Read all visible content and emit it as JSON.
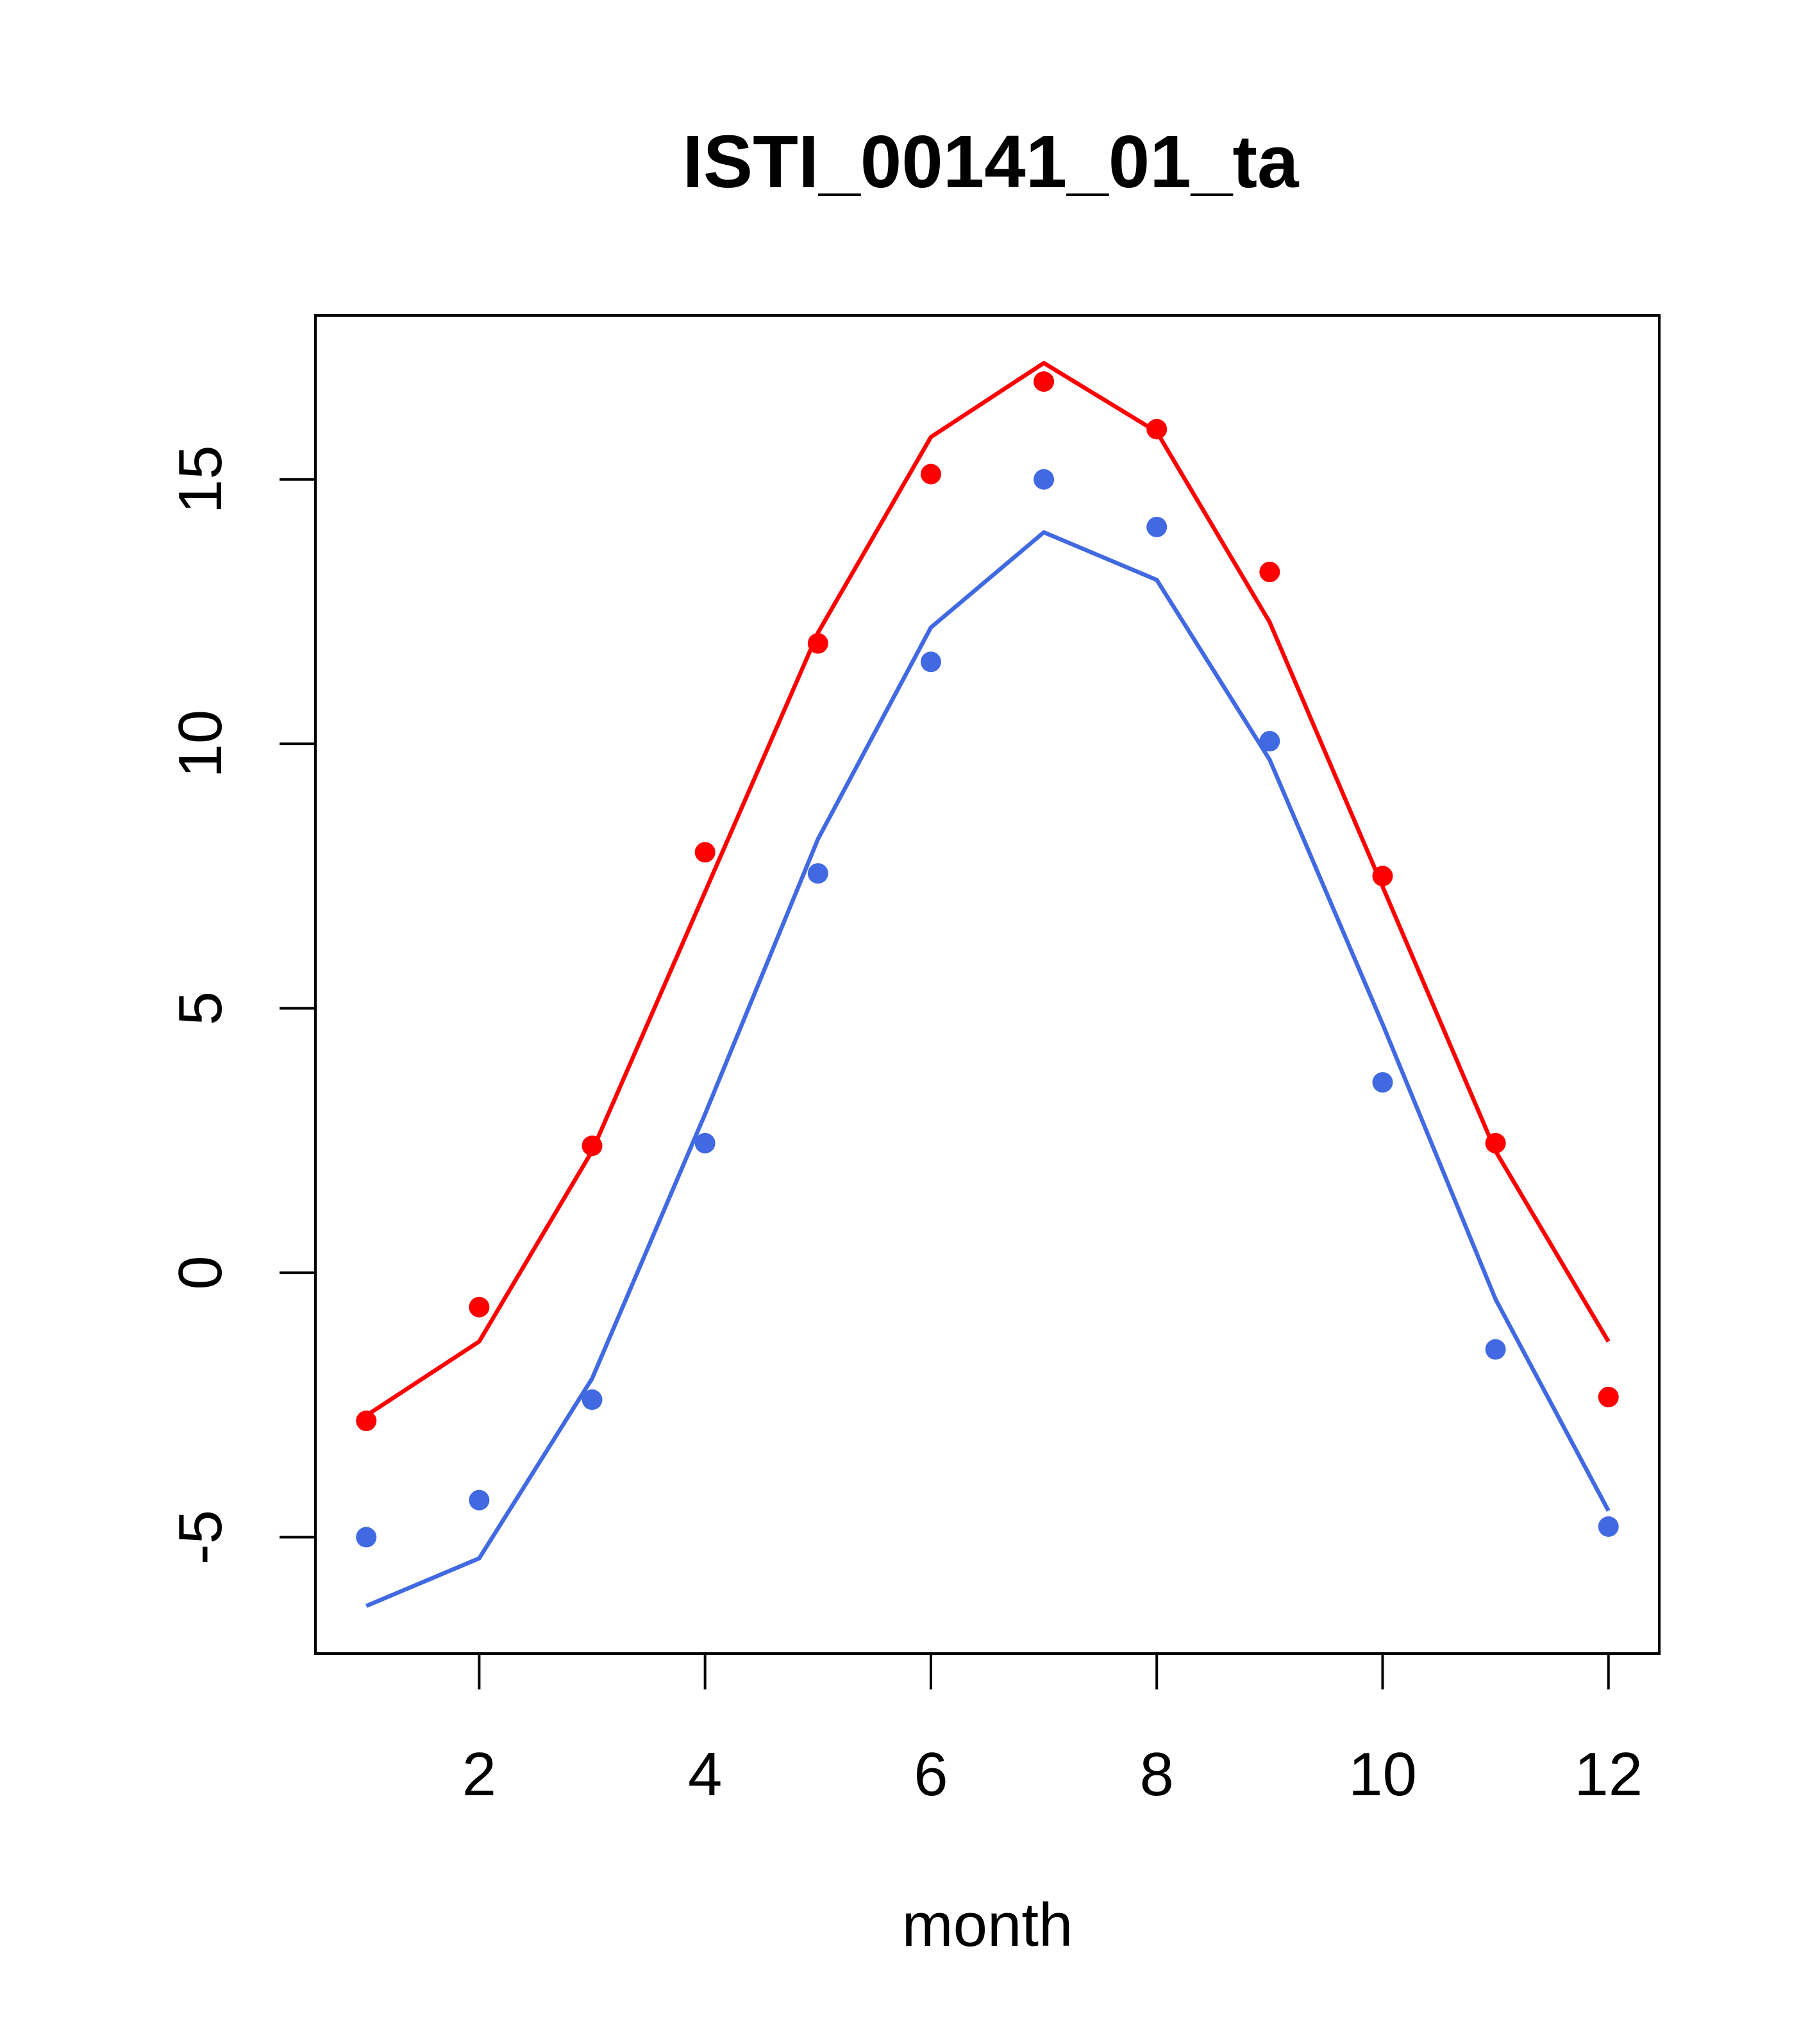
{
  "chart_data": {
    "type": "line",
    "title": "ISTI_00141_01_ta",
    "xlabel": "month",
    "ylabel": "",
    "xlim": [
      0.55,
      12.45
    ],
    "ylim": [
      -7.2,
      18.1
    ],
    "x_ticks": [
      2,
      4,
      6,
      8,
      10,
      12
    ],
    "y_ticks": [
      -5,
      0,
      5,
      10,
      15
    ],
    "x": [
      1,
      2,
      3,
      4,
      5,
      6,
      7,
      8,
      9,
      10,
      11,
      12
    ],
    "series": [
      {
        "color": "#ff0000",
        "line": [
          -2.7,
          -1.3,
          2.3,
          7.2,
          12.1,
          15.8,
          17.2,
          15.9,
          12.3,
          7.3,
          2.3,
          -1.3
        ],
        "points": [
          -2.8,
          -0.65,
          2.4,
          7.95,
          11.9,
          15.1,
          16.85,
          15.95,
          13.25,
          7.5,
          2.45,
          -2.35
        ]
      },
      {
        "color": "#4169e1",
        "line": [
          -6.3,
          -5.4,
          -2.0,
          3.0,
          8.2,
          12.2,
          14.0,
          13.1,
          9.7,
          4.7,
          -0.5,
          -4.5
        ],
        "points": [
          -5.0,
          -4.3,
          -2.4,
          2.45,
          7.55,
          11.55,
          15.0,
          14.1,
          10.05,
          3.6,
          -1.45,
          -4.8
        ]
      }
    ],
    "grid": false,
    "legend": "none"
  }
}
